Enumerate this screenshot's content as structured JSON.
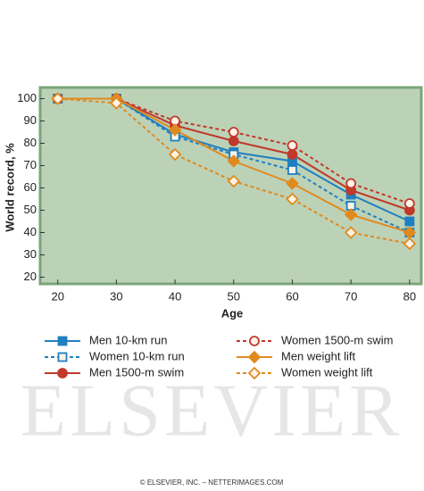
{
  "chart_data": {
    "type": "line",
    "xlabel": "Age",
    "ylabel": "World record, %",
    "x": [
      20,
      30,
      40,
      50,
      60,
      70,
      80
    ],
    "xlim": [
      17,
      82
    ],
    "xticks": [
      20,
      30,
      40,
      50,
      60,
      70,
      80
    ],
    "ylim": [
      17,
      105
    ],
    "yticks": [
      20,
      30,
      40,
      50,
      60,
      70,
      80,
      90,
      100
    ],
    "background": "#bcd2b7",
    "border_color": "#79a57a",
    "series": [
      {
        "name": "Men 10-km run",
        "color": "#1f7fc0",
        "dashed": false,
        "marker": "square",
        "filled": true,
        "values": [
          100,
          100,
          84,
          76,
          72,
          57,
          45
        ]
      },
      {
        "name": "Women 10-km run",
        "color": "#1f7fc0",
        "dashed": true,
        "marker": "square",
        "filled": false,
        "values": [
          100,
          100,
          83,
          75,
          68,
          52,
          40
        ]
      },
      {
        "name": "Men 1500-m swim",
        "color": "#c0392b",
        "dashed": false,
        "marker": "circle",
        "filled": true,
        "values": [
          100,
          100,
          88,
          81,
          75,
          59,
          50
        ]
      },
      {
        "name": "Women 1500-m swim",
        "color": "#c0392b",
        "dashed": true,
        "marker": "circle",
        "filled": false,
        "values": [
          100,
          100,
          90,
          85,
          79,
          62,
          53
        ]
      },
      {
        "name": "Men weight lift",
        "color": "#e08a1e",
        "dashed": false,
        "marker": "diamond",
        "filled": true,
        "values": [
          100,
          100,
          86,
          72,
          62,
          48,
          40
        ]
      },
      {
        "name": "Women weight lift",
        "color": "#e08a1e",
        "dashed": true,
        "marker": "diamond",
        "filled": false,
        "values": [
          100,
          98,
          75,
          63,
          55,
          40,
          35
        ]
      }
    ]
  },
  "watermark": "ELSEVIER",
  "footer": "© ELSEVIER, INC. – NETTERIMAGES.COM"
}
